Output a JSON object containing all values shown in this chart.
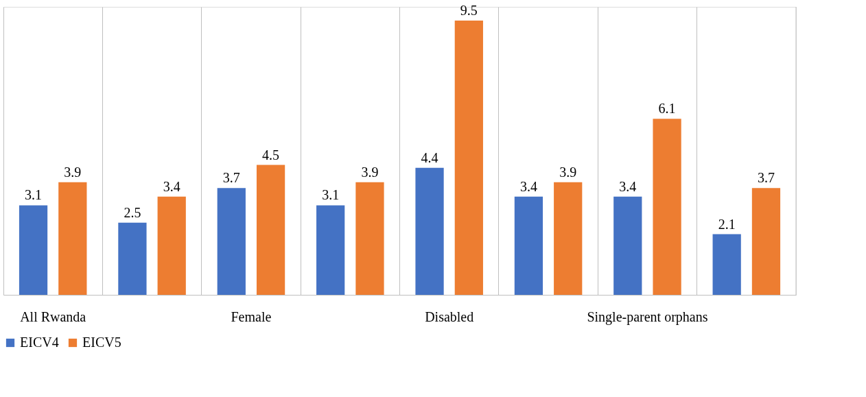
{
  "chart_data": {
    "type": "bar",
    "categories": [
      "All Rwanda",
      null,
      "Female",
      null,
      "Disabled",
      null,
      "Single-parent orphans",
      null
    ],
    "series": [
      {
        "name": "EICV4",
        "color": "#4472c4",
        "values": [
          3.1,
          2.5,
          3.7,
          3.1,
          4.4,
          3.4,
          3.4,
          2.1
        ]
      },
      {
        "name": "EICV5",
        "color": "#ed7d31",
        "values": [
          3.9,
          3.4,
          4.5,
          3.9,
          9.5,
          3.9,
          6.1,
          3.7
        ]
      }
    ],
    "data_labels": true,
    "grid": "x",
    "legend": "bottom"
  }
}
